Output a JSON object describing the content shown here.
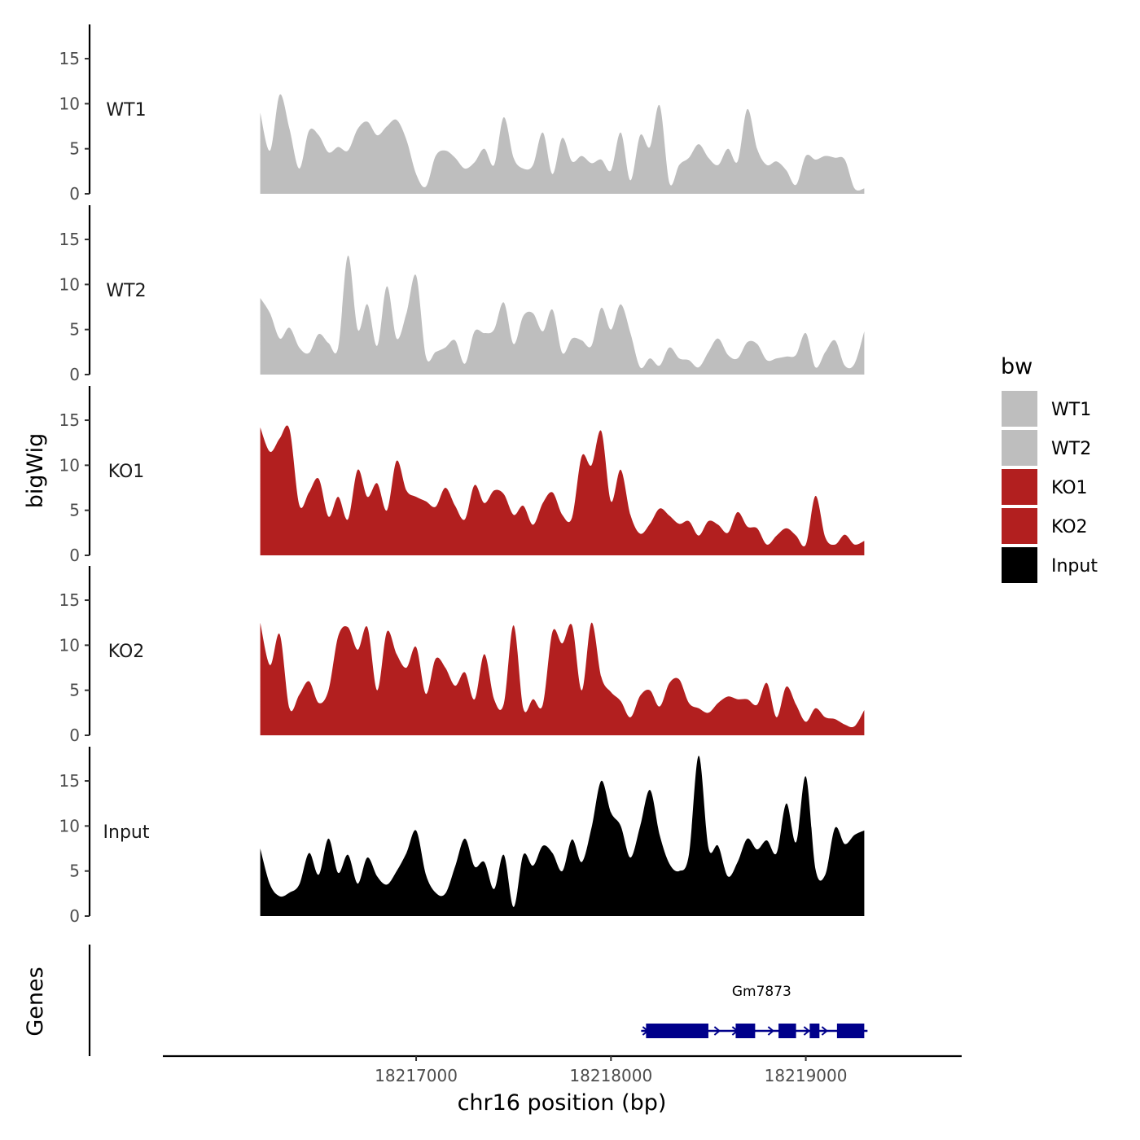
{
  "chart_data": {
    "type": "area",
    "title": "",
    "xlabel": "chr16 position (bp)",
    "ylabel": "bigWig",
    "genes_label": "Genes",
    "xlim": [
      18215700,
      18219800
    ],
    "ylim": [
      0,
      18.8
    ],
    "x_ticks": [
      18217000,
      18218000,
      18219000
    ],
    "x_tick_labels": [
      "18217000",
      "18218000",
      "18219000"
    ],
    "y_ticks": [
      0,
      5,
      10,
      15
    ],
    "y_tick_labels": [
      "0",
      "5",
      "10",
      "15"
    ],
    "legend": {
      "title": "bw",
      "position": "right",
      "entries": [
        {
          "label": "WT1",
          "color": "#bebebe"
        },
        {
          "label": "WT2",
          "color": "#bebebe"
        },
        {
          "label": "KO1",
          "color": "#b21f1f"
        },
        {
          "label": "KO2",
          "color": "#b21f1f"
        },
        {
          "label": "Input",
          "color": "#000000"
        }
      ]
    },
    "series": [
      {
        "name": "WT1",
        "color": "#bebebe",
        "x": [
          18216200,
          18216250,
          18216300,
          18216350,
          18216400,
          18216450,
          18216500,
          18216550,
          18216600,
          18216650,
          18216700,
          18216750,
          18216800,
          18216850,
          18216900,
          18216950,
          18217000,
          18217050,
          18217100,
          18217150,
          18217200,
          18217250,
          18217300,
          18217350,
          18217400,
          18217450,
          18217500,
          18217550,
          18217600,
          18217650,
          18217700,
          18217750,
          18217800,
          18217850,
          18217900,
          18217950,
          18218000,
          18218050,
          18218100,
          18218150,
          18218200,
          18218250,
          18218300,
          18218350,
          18218400,
          18218450,
          18218500,
          18218550,
          18218600,
          18218650,
          18218700,
          18218750,
          18218800,
          18218850,
          18218900,
          18218950,
          18219000,
          18219050,
          18219100,
          18219150,
          18219200,
          18219250,
          18219300
        ],
        "values": [
          9.0,
          4.8,
          11.0,
          7.2,
          2.8,
          7.0,
          6.5,
          4.6,
          5.2,
          4.8,
          7.2,
          8.0,
          6.5,
          7.5,
          8.2,
          6.0,
          2.2,
          0.8,
          4.2,
          4.8,
          4.0,
          2.8,
          3.5,
          5.0,
          3.2,
          8.5,
          4.0,
          2.8,
          3.2,
          6.8,
          2.2,
          6.2,
          3.6,
          4.2,
          3.4,
          3.8,
          2.6,
          6.8,
          1.5,
          6.5,
          5.2,
          9.8,
          1.2,
          3.2,
          4.0,
          5.5,
          4.0,
          3.2,
          5.0,
          3.6,
          9.4,
          5.0,
          3.2,
          3.6,
          2.6,
          1.0,
          4.2,
          3.8,
          4.2,
          4.0,
          3.8,
          0.6,
          0.6
        ]
      },
      {
        "name": "WT2",
        "color": "#bebebe",
        "x": [
          18216200,
          18216250,
          18216300,
          18216350,
          18216400,
          18216450,
          18216500,
          18216550,
          18216600,
          18216650,
          18216700,
          18216750,
          18216800,
          18216850,
          18216900,
          18216950,
          18217000,
          18217050,
          18217100,
          18217150,
          18217200,
          18217250,
          18217300,
          18217350,
          18217400,
          18217450,
          18217500,
          18217550,
          18217600,
          18217650,
          18217700,
          18217750,
          18217800,
          18217850,
          18217900,
          18217950,
          18218000,
          18218050,
          18218100,
          18218150,
          18218200,
          18218250,
          18218300,
          18218350,
          18218400,
          18218450,
          18218500,
          18218550,
          18218600,
          18218650,
          18218700,
          18218750,
          18218800,
          18218850,
          18218900,
          18218950,
          18219000,
          18219050,
          18219100,
          18219150,
          18219200,
          18219250,
          18219300
        ],
        "values": [
          8.5,
          6.8,
          4.0,
          5.2,
          3.0,
          2.4,
          4.5,
          3.5,
          3.0,
          13.2,
          5.0,
          7.8,
          3.2,
          9.8,
          4.0,
          6.8,
          11.0,
          2.0,
          2.5,
          3.0,
          3.8,
          1.2,
          4.8,
          4.6,
          5.0,
          8.0,
          3.4,
          6.5,
          6.8,
          4.8,
          7.2,
          2.4,
          4.0,
          3.8,
          3.2,
          7.4,
          5.0,
          7.8,
          4.6,
          0.8,
          1.8,
          1.0,
          3.0,
          1.8,
          1.6,
          0.8,
          2.5,
          4.0,
          2.2,
          1.8,
          3.6,
          3.4,
          1.6,
          1.8,
          2.0,
          2.2,
          4.6,
          0.8,
          2.5,
          3.8,
          1.0,
          1.2,
          4.8
        ]
      },
      {
        "name": "KO1",
        "color": "#b21f1f",
        "x": [
          18216200,
          18216250,
          18216300,
          18216350,
          18216400,
          18216450,
          18216500,
          18216550,
          18216600,
          18216650,
          18216700,
          18216750,
          18216800,
          18216850,
          18216900,
          18216950,
          18217000,
          18217050,
          18217100,
          18217150,
          18217200,
          18217250,
          18217300,
          18217350,
          18217400,
          18217450,
          18217500,
          18217550,
          18217600,
          18217650,
          18217700,
          18217750,
          18217800,
          18217850,
          18217900,
          18217950,
          18218000,
          18218050,
          18218100,
          18218150,
          18218200,
          18218250,
          18218300,
          18218350,
          18218400,
          18218450,
          18218500,
          18218550,
          18218600,
          18218650,
          18218700,
          18218750,
          18218800,
          18218850,
          18218900,
          18218950,
          18219000,
          18219050,
          18219100,
          18219150,
          18219200,
          18219250,
          18219300
        ],
        "values": [
          14.2,
          11.5,
          13.0,
          14.0,
          5.6,
          7.0,
          8.5,
          4.3,
          6.5,
          4.0,
          9.5,
          6.5,
          8.0,
          5.0,
          10.5,
          7.2,
          6.5,
          6.0,
          5.4,
          7.5,
          5.5,
          4.0,
          7.8,
          5.8,
          7.2,
          6.8,
          4.5,
          5.5,
          3.4,
          5.8,
          7.0,
          4.5,
          4.2,
          11.0,
          10.0,
          13.8,
          6.0,
          9.5,
          4.5,
          2.4,
          3.5,
          5.2,
          4.4,
          3.5,
          3.8,
          2.2,
          3.8,
          3.4,
          2.5,
          4.8,
          3.2,
          3.0,
          1.2,
          2.2,
          3.0,
          2.2,
          1.2,
          6.6,
          2.0,
          1.2,
          2.3,
          1.2,
          1.6
        ]
      },
      {
        "name": "KO2",
        "color": "#b21f1f",
        "x": [
          18216200,
          18216250,
          18216300,
          18216350,
          18216400,
          18216450,
          18216500,
          18216550,
          18216600,
          18216650,
          18216700,
          18216750,
          18216800,
          18216850,
          18216900,
          18216950,
          18217000,
          18217050,
          18217100,
          18217150,
          18217200,
          18217250,
          18217300,
          18217350,
          18217400,
          18217450,
          18217500,
          18217550,
          18217600,
          18217650,
          18217700,
          18217750,
          18217800,
          18217850,
          18217900,
          18217950,
          18218000,
          18218050,
          18218100,
          18218150,
          18218200,
          18218250,
          18218300,
          18218350,
          18218400,
          18218450,
          18218500,
          18218550,
          18218600,
          18218650,
          18218700,
          18218750,
          18218800,
          18218850,
          18218900,
          18218950,
          18219000,
          18219050,
          18219100,
          18219150,
          18219200,
          18219250,
          18219300
        ],
        "values": [
          12.5,
          7.8,
          11.2,
          3.0,
          4.5,
          6.0,
          3.6,
          5.0,
          11.0,
          12.0,
          9.5,
          12.0,
          5.0,
          11.5,
          9.0,
          7.5,
          9.8,
          4.6,
          8.5,
          7.5,
          5.5,
          7.0,
          4.0,
          9.0,
          4.0,
          3.5,
          12.2,
          3.0,
          4.0,
          3.4,
          11.5,
          10.2,
          12.2,
          5.0,
          12.5,
          6.5,
          4.8,
          3.8,
          2.0,
          4.4,
          5.0,
          3.2,
          5.8,
          6.2,
          3.6,
          3.0,
          2.5,
          3.6,
          4.3,
          4.0,
          4.0,
          3.4,
          5.8,
          2.0,
          5.4,
          3.4,
          1.5,
          3.0,
          2.0,
          1.8,
          1.2,
          1.0,
          2.8
        ]
      },
      {
        "name": "Input",
        "color": "#000000",
        "x": [
          18216200,
          18216250,
          18216300,
          18216350,
          18216400,
          18216450,
          18216500,
          18216550,
          18216600,
          18216650,
          18216700,
          18216750,
          18216800,
          18216850,
          18216900,
          18216950,
          18217000,
          18217050,
          18217100,
          18217150,
          18217200,
          18217250,
          18217300,
          18217350,
          18217400,
          18217450,
          18217500,
          18217550,
          18217600,
          18217650,
          18217700,
          18217750,
          18217800,
          18217850,
          18217900,
          18217950,
          18218000,
          18218050,
          18218100,
          18218150,
          18218200,
          18218250,
          18218300,
          18218350,
          18218400,
          18218450,
          18218500,
          18218550,
          18218600,
          18218650,
          18218700,
          18218750,
          18218800,
          18218850,
          18218900,
          18218950,
          18219000,
          18219050,
          18219100,
          18219150,
          18219200,
          18219250,
          18219300
        ],
        "values": [
          7.5,
          3.5,
          2.2,
          2.6,
          3.5,
          7.0,
          4.6,
          8.6,
          4.8,
          6.8,
          3.6,
          6.5,
          4.4,
          3.5,
          5.0,
          7.0,
          9.5,
          4.6,
          2.6,
          2.5,
          5.5,
          8.6,
          5.5,
          6.0,
          3.0,
          6.8,
          1.0,
          6.8,
          5.6,
          7.8,
          7.0,
          5.0,
          8.5,
          6.0,
          9.8,
          15.0,
          11.5,
          10.0,
          6.5,
          10.0,
          14.0,
          9.0,
          5.8,
          5.0,
          6.8,
          17.8,
          7.6,
          7.8,
          4.4,
          6.0,
          8.6,
          7.4,
          8.4,
          7.0,
          12.5,
          8.2,
          15.5,
          5.2,
          4.6,
          9.8,
          8.0,
          9.0,
          9.5
        ]
      }
    ],
    "genes": [
      {
        "name": "Gm7873",
        "strand": "+",
        "start": 18218180,
        "end": 18219300,
        "color": "#00008b",
        "exons": [
          [
            18218180,
            18218500
          ],
          [
            18218640,
            18218740
          ],
          [
            18218860,
            18218950
          ],
          [
            18219020,
            18219070
          ],
          [
            18219160,
            18219300
          ]
        ]
      }
    ]
  }
}
